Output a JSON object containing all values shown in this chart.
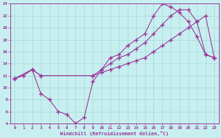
{
  "xlabel": "Windchill (Refroidissement éolien,°C)",
  "ylabel": "",
  "xlim": [
    -0.5,
    23.5
  ],
  "ylim": [
    4,
    24
  ],
  "xticks": [
    0,
    1,
    2,
    3,
    4,
    5,
    6,
    7,
    8,
    9,
    10,
    11,
    12,
    13,
    14,
    15,
    16,
    17,
    18,
    19,
    20,
    21,
    22,
    23
  ],
  "yticks": [
    4,
    6,
    8,
    10,
    12,
    14,
    16,
    18,
    20,
    22,
    24
  ],
  "background_color": "#c8efef",
  "line_color": "#993399",
  "grid_color": "#a0d8d8",
  "line1_x": [
    0,
    1,
    2,
    3,
    4,
    5,
    6,
    7,
    8,
    9,
    10,
    11,
    12,
    13,
    14,
    15,
    16,
    17,
    18,
    19,
    20,
    21,
    22,
    23
  ],
  "line1_y": [
    11.5,
    12,
    13,
    9,
    8,
    6,
    5.5,
    4,
    5,
    11,
    13,
    15,
    15.5,
    17,
    18,
    19,
    22,
    24,
    23.5,
    22.5,
    21,
    18.5,
    15.5,
    15
  ],
  "line2_x": [
    0,
    2,
    3,
    9,
    10,
    11,
    12,
    13,
    14,
    15,
    16,
    17,
    18,
    19,
    20,
    21,
    22,
    23
  ],
  "line2_y": [
    11.5,
    13,
    12,
    12,
    13,
    14,
    15,
    15.5,
    16.5,
    17.5,
    19,
    20.5,
    22,
    23,
    23,
    21,
    15.5,
    15
  ],
  "line3_x": [
    0,
    2,
    3,
    9,
    10,
    11,
    12,
    13,
    14,
    15,
    16,
    17,
    18,
    19,
    20,
    21,
    22,
    23
  ],
  "line3_y": [
    11.5,
    13,
    12,
    12,
    12.5,
    13,
    13.5,
    14,
    14.5,
    15,
    16,
    17,
    18,
    19,
    20,
    21,
    22,
    15
  ]
}
